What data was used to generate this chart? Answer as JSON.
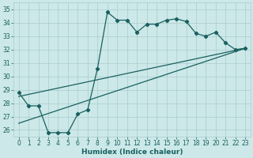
{
  "xlabel": "Humidex (Indice chaleur)",
  "bg_color": "#cce8e8",
  "grid_color": "#aacccc",
  "line_color": "#1a6060",
  "xlim": [
    -0.5,
    23.5
  ],
  "ylim": [
    25.5,
    35.5
  ],
  "xticks": [
    0,
    1,
    2,
    3,
    4,
    5,
    6,
    7,
    8,
    9,
    10,
    11,
    12,
    13,
    14,
    15,
    16,
    17,
    18,
    19,
    20,
    21,
    22,
    23
  ],
  "yticks": [
    26,
    27,
    28,
    29,
    30,
    31,
    32,
    33,
    34,
    35
  ],
  "series1_x": [
    0,
    1,
    2,
    3,
    4,
    5,
    6,
    7,
    8,
    9,
    10,
    11,
    12,
    13,
    14,
    15,
    16,
    17,
    18,
    19,
    20,
    21,
    22,
    23
  ],
  "series1_y": [
    28.8,
    27.8,
    27.8,
    25.8,
    25.8,
    25.8,
    27.2,
    27.5,
    30.6,
    34.8,
    34.2,
    34.2,
    33.3,
    33.9,
    33.9,
    34.2,
    34.3,
    34.1,
    33.2,
    33.0,
    33.3,
    32.5,
    32.0,
    32.1
  ],
  "line2_x": [
    0,
    23
  ],
  "line2_y": [
    26.5,
    32.1
  ],
  "line3_x": [
    0,
    23
  ],
  "line3_y": [
    28.5,
    32.1
  ],
  "tick_fontsize": 5.5,
  "xlabel_fontsize": 6.5
}
